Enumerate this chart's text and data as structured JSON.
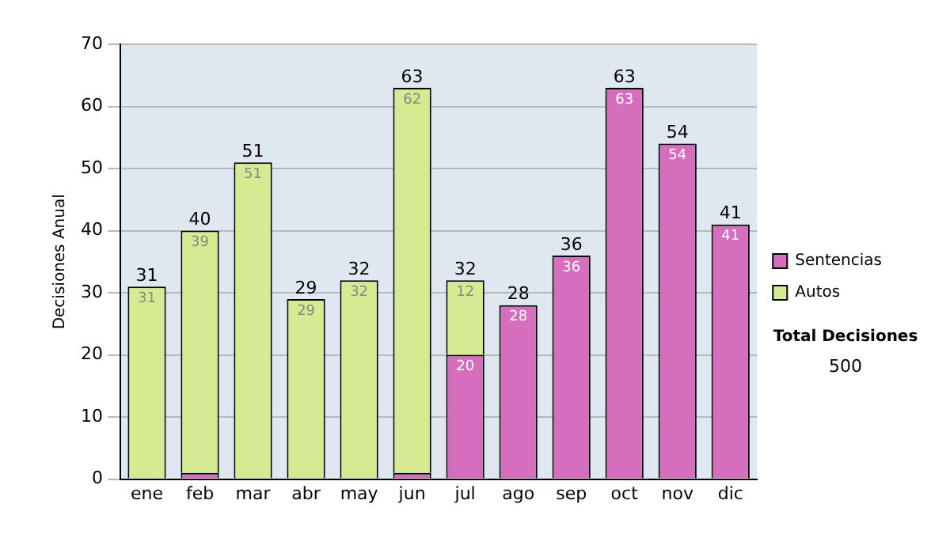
{
  "chart_data": {
    "type": "bar",
    "stacked": true,
    "ylabel": "Decisiones Anual",
    "categories": [
      "ene",
      "feb",
      "mar",
      "abr",
      "may",
      "jun",
      "jul",
      "ago",
      "sep",
      "oct",
      "nov",
      "dic"
    ],
    "series": [
      {
        "name": "Sentencias",
        "color": "#d56fbd",
        "values": [
          null,
          1,
          null,
          null,
          null,
          1,
          20,
          28,
          36,
          63,
          54,
          41
        ],
        "value_labels": [
          null,
          null,
          null,
          null,
          null,
          null,
          "20",
          "28",
          "36",
          "63",
          "54",
          "41"
        ]
      },
      {
        "name": "Autos",
        "color": "#d6ea92",
        "values": [
          31,
          39,
          51,
          29,
          32,
          62,
          12,
          null,
          null,
          null,
          null,
          null
        ],
        "value_labels": [
          "31",
          "39",
          "51",
          "29",
          "32",
          "62",
          "12",
          null,
          null,
          null,
          null,
          null
        ]
      }
    ],
    "totals": [
      "31",
      "40",
      "51",
      "29",
      "32",
      "63",
      "32",
      "28",
      "36",
      "63",
      "54",
      "41"
    ],
    "ylim": [
      0,
      70
    ],
    "yticks": [
      0,
      10,
      20,
      30,
      40,
      50,
      60,
      70
    ],
    "grid": "y",
    "legend": "right",
    "annotations": [
      "Total Decisiones",
      "500"
    ]
  }
}
